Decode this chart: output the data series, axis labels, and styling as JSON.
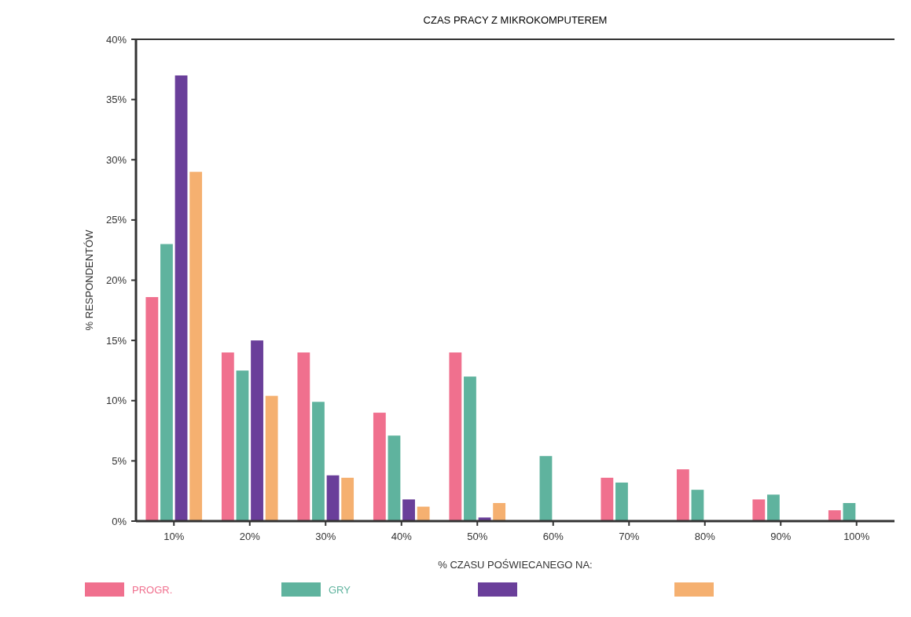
{
  "chart_data": {
    "type": "bar",
    "title": "CZAS PRACY Z MIKROKOMPUTEREM",
    "xlabel": "% CZASU POŚWIECANEGO NA:",
    "ylabel": "% RESPONDENTÓW",
    "categories": [
      "10%",
      "20%",
      "30%",
      "40%",
      "50%",
      "60%",
      "70%",
      "80%",
      "90%",
      "100%"
    ],
    "series": [
      {
        "name": "PROGR.",
        "color": "#f0708e",
        "values": [
          18.6,
          14,
          14,
          9,
          14,
          null,
          3.6,
          4.3,
          1.8,
          0.9
        ]
      },
      {
        "name": "GRY",
        "color": "#5fb39e",
        "values": [
          23,
          12.5,
          9.9,
          7.1,
          12,
          5.4,
          3.2,
          2.6,
          2.2,
          1.5
        ]
      },
      {
        "color": "#6a3f9a",
        "values": [
          37,
          15,
          3.8,
          1.8,
          0.3,
          null,
          null,
          null,
          null,
          null
        ]
      },
      {
        "color": "#f5b070",
        "values": [
          29,
          10.4,
          3.6,
          1.2,
          1.5,
          null,
          null,
          null,
          null,
          null
        ]
      }
    ],
    "ylim": [
      0,
      40
    ],
    "yticks": [
      {
        "value": 0,
        "label": "0%"
      },
      {
        "value": 5,
        "label": "5%"
      },
      {
        "value": 10,
        "label": "10%"
      },
      {
        "value": 15,
        "label": "15%"
      },
      {
        "value": 20,
        "label": "20%"
      },
      {
        "value": 25,
        "label": "25%"
      },
      {
        "value": 30,
        "label": "30%"
      },
      {
        "value": 35,
        "label": "35%"
      },
      {
        "value": 40,
        "label": "40%"
      }
    ],
    "grid": false,
    "legend": "bottom"
  }
}
